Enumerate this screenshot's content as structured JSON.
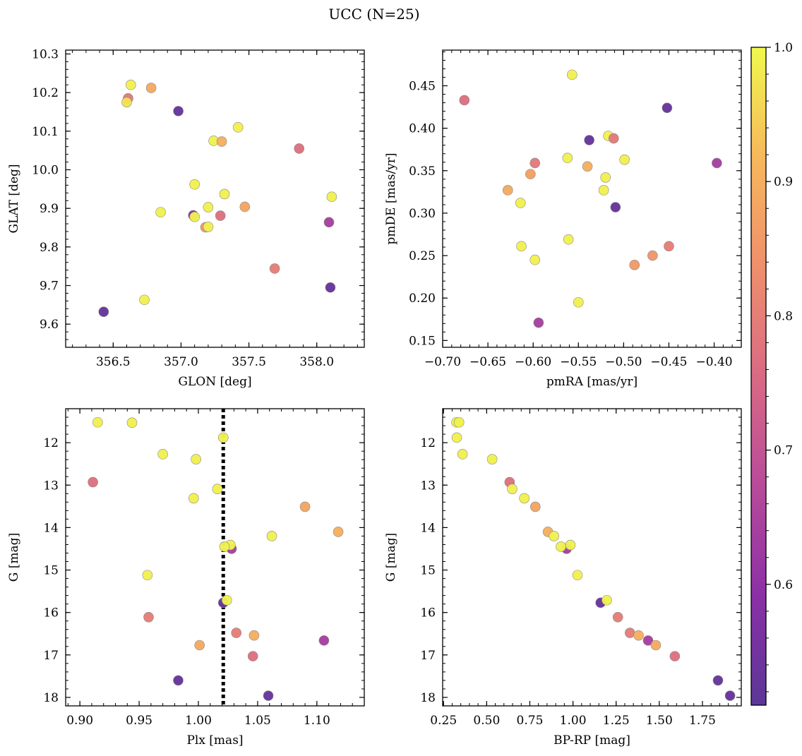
{
  "figure": {
    "suptitle": "UCC (N=25)",
    "colorbar": {
      "min": 0.51,
      "max": 1.0,
      "ticks": [
        0.6,
        0.7,
        0.8,
        0.9,
        1.0
      ],
      "tick_labels": [
        "0.6",
        "0.7",
        "0.8",
        "0.9",
        "1.0"
      ],
      "colormap": "plasma",
      "colormap_stops": [
        "#5b3797",
        "#8b30a6",
        "#b84b9a",
        "#d96a84",
        "#ef8f6c",
        "#f7b85b",
        "#f0f94e"
      ]
    }
  },
  "chart_data": [
    {
      "type": "scatter",
      "xlabel": "GLON [deg]",
      "ylabel": "GLAT [deg]",
      "xlim": [
        356.15,
        358.35
      ],
      "ylim": [
        9.54,
        10.31
      ],
      "xticks": [
        356.5,
        357.0,
        357.5,
        358.0
      ],
      "xtick_labels": [
        "356.5",
        "357.0",
        "357.5",
        "358.0"
      ],
      "yticks": [
        9.6,
        9.7,
        9.8,
        9.9,
        10.0,
        10.1,
        10.2,
        10.3
      ],
      "ytick_labels": [
        "9.6",
        "9.7",
        "9.8",
        "9.9",
        "10.0",
        "10.1",
        "10.2",
        "10.3"
      ],
      "points": [
        {
          "x": 356.43,
          "y": 9.632,
          "c": 0.53
        },
        {
          "x": 356.61,
          "y": 10.185,
          "c": 0.79
        },
        {
          "x": 356.63,
          "y": 10.22,
          "c": 0.99
        },
        {
          "x": 356.6,
          "y": 10.175,
          "c": 0.97
        },
        {
          "x": 356.78,
          "y": 10.212,
          "c": 0.89
        },
        {
          "x": 356.98,
          "y": 10.152,
          "c": 0.53
        },
        {
          "x": 356.85,
          "y": 9.89,
          "c": 0.99
        },
        {
          "x": 356.73,
          "y": 9.663,
          "c": 0.99
        },
        {
          "x": 357.09,
          "y": 9.882,
          "c": 0.59
        },
        {
          "x": 357.1,
          "y": 9.962,
          "c": 0.99
        },
        {
          "x": 357.1,
          "y": 9.878,
          "c": 0.99
        },
        {
          "x": 357.18,
          "y": 9.851,
          "c": 0.85
        },
        {
          "x": 357.2,
          "y": 9.852,
          "c": 0.99
        },
        {
          "x": 357.2,
          "y": 9.903,
          "c": 0.99
        },
        {
          "x": 357.24,
          "y": 10.075,
          "c": 0.99
        },
        {
          "x": 357.3,
          "y": 10.073,
          "c": 0.9
        },
        {
          "x": 357.29,
          "y": 9.881,
          "c": 0.77
        },
        {
          "x": 357.32,
          "y": 9.937,
          "c": 0.99
        },
        {
          "x": 357.42,
          "y": 10.11,
          "c": 0.99
        },
        {
          "x": 357.47,
          "y": 9.904,
          "c": 0.88
        },
        {
          "x": 357.69,
          "y": 9.744,
          "c": 0.8
        },
        {
          "x": 357.87,
          "y": 10.055,
          "c": 0.77
        },
        {
          "x": 358.09,
          "y": 9.864,
          "c": 0.64
        },
        {
          "x": 358.1,
          "y": 9.695,
          "c": 0.53
        },
        {
          "x": 358.11,
          "y": 9.93,
          "c": 0.99
        }
      ]
    },
    {
      "type": "scatter",
      "xlabel": "pmRA [mas/yr]",
      "ylabel": "pmDE [mas/yr]",
      "xlim": [
        -0.7,
        -0.37
      ],
      "ylim": [
        0.142,
        0.492
      ],
      "xticks": [
        -0.7,
        -0.65,
        -0.6,
        -0.55,
        -0.5,
        -0.45,
        -0.4
      ],
      "xtick_labels": [
        "−0.70",
        "−0.65",
        "−0.60",
        "−0.55",
        "−0.50",
        "−0.45",
        "−0.40"
      ],
      "yticks": [
        0.15,
        0.2,
        0.25,
        0.3,
        0.35,
        0.4,
        0.45
      ],
      "ytick_labels": [
        "0.15",
        "0.20",
        "0.25",
        "0.30",
        "0.35",
        "0.40",
        "0.45"
      ],
      "points": [
        {
          "x": -0.676,
          "y": 0.433,
          "c": 0.77
        },
        {
          "x": -0.557,
          "y": 0.463,
          "c": 0.99
        },
        {
          "x": -0.452,
          "y": 0.424,
          "c": 0.53
        },
        {
          "x": -0.538,
          "y": 0.386,
          "c": 0.53
        },
        {
          "x": -0.517,
          "y": 0.391,
          "c": 0.99
        },
        {
          "x": -0.511,
          "y": 0.388,
          "c": 0.79
        },
        {
          "x": -0.397,
          "y": 0.359,
          "c": 0.64
        },
        {
          "x": -0.598,
          "y": 0.359,
          "c": 0.79
        },
        {
          "x": -0.562,
          "y": 0.365,
          "c": 0.99
        },
        {
          "x": -0.54,
          "y": 0.355,
          "c": 0.9
        },
        {
          "x": -0.603,
          "y": 0.346,
          "c": 0.87
        },
        {
          "x": -0.52,
          "y": 0.342,
          "c": 0.99
        },
        {
          "x": -0.499,
          "y": 0.363,
          "c": 0.99
        },
        {
          "x": -0.628,
          "y": 0.327,
          "c": 0.89
        },
        {
          "x": -0.522,
          "y": 0.327,
          "c": 0.99
        },
        {
          "x": -0.614,
          "y": 0.312,
          "c": 0.99
        },
        {
          "x": -0.509,
          "y": 0.307,
          "c": 0.53
        },
        {
          "x": -0.613,
          "y": 0.261,
          "c": 0.99
        },
        {
          "x": -0.561,
          "y": 0.269,
          "c": 0.99
        },
        {
          "x": -0.598,
          "y": 0.245,
          "c": 0.99
        },
        {
          "x": -0.45,
          "y": 0.261,
          "c": 0.8
        },
        {
          "x": -0.468,
          "y": 0.25,
          "c": 0.85
        },
        {
          "x": -0.488,
          "y": 0.239,
          "c": 0.86
        },
        {
          "x": -0.55,
          "y": 0.195,
          "c": 0.99
        },
        {
          "x": -0.594,
          "y": 0.171,
          "c": 0.64
        }
      ]
    },
    {
      "type": "scatter",
      "xlabel": "Plx [mas]",
      "ylabel": "G [mag]",
      "xlim": [
        0.888,
        1.14
      ],
      "ylim": [
        18.2,
        11.2
      ],
      "y_inverted": true,
      "xticks": [
        0.9,
        0.95,
        1.0,
        1.05,
        1.1
      ],
      "xtick_labels": [
        "0.90",
        "0.95",
        "1.00",
        "1.05",
        "1.10"
      ],
      "yticks": [
        12,
        13,
        14,
        15,
        16,
        17,
        18
      ],
      "ytick_labels": [
        "12",
        "13",
        "14",
        "15",
        "16",
        "17",
        "18"
      ],
      "vline": {
        "x": 1.021,
        "style": "dotted"
      },
      "points": [
        {
          "x": 0.915,
          "y": 11.52,
          "c": 0.99
        },
        {
          "x": 0.944,
          "y": 11.53,
          "c": 0.99
        },
        {
          "x": 1.021,
          "y": 11.88,
          "c": 0.99
        },
        {
          "x": 0.97,
          "y": 12.27,
          "c": 0.99
        },
        {
          "x": 0.998,
          "y": 12.39,
          "c": 0.99
        },
        {
          "x": 0.911,
          "y": 12.93,
          "c": 0.77
        },
        {
          "x": 1.016,
          "y": 13.09,
          "c": 0.99
        },
        {
          "x": 0.996,
          "y": 13.31,
          "c": 0.99
        },
        {
          "x": 1.09,
          "y": 13.51,
          "c": 0.88
        },
        {
          "x": 1.118,
          "y": 14.1,
          "c": 0.9
        },
        {
          "x": 1.062,
          "y": 14.2,
          "c": 0.99
        },
        {
          "x": 1.028,
          "y": 14.5,
          "c": 0.64
        },
        {
          "x": 1.027,
          "y": 14.41,
          "c": 0.99
        },
        {
          "x": 1.022,
          "y": 14.45,
          "c": 0.99
        },
        {
          "x": 0.957,
          "y": 15.12,
          "c": 0.99
        },
        {
          "x": 1.021,
          "y": 15.77,
          "c": 0.53
        },
        {
          "x": 1.024,
          "y": 15.71,
          "c": 0.99
        },
        {
          "x": 0.958,
          "y": 16.11,
          "c": 0.8
        },
        {
          "x": 1.032,
          "y": 16.48,
          "c": 0.8
        },
        {
          "x": 1.047,
          "y": 16.54,
          "c": 0.9
        },
        {
          "x": 1.106,
          "y": 16.66,
          "c": 0.64
        },
        {
          "x": 1.001,
          "y": 16.77,
          "c": 0.89
        },
        {
          "x": 1.046,
          "y": 17.03,
          "c": 0.77
        },
        {
          "x": 0.983,
          "y": 17.6,
          "c": 0.53
        },
        {
          "x": 1.059,
          "y": 17.96,
          "c": 0.53
        }
      ]
    },
    {
      "type": "scatter",
      "xlabel": "BP-RP [mag]",
      "ylabel": "G [mag]",
      "xlim": [
        0.245,
        1.975
      ],
      "ylim": [
        18.2,
        11.2
      ],
      "y_inverted": true,
      "xticks": [
        0.25,
        0.5,
        0.75,
        1.0,
        1.25,
        1.5,
        1.75
      ],
      "xtick_labels": [
        "0.25",
        "0.50",
        "0.75",
        "1.00",
        "1.25",
        "1.50",
        "1.75"
      ],
      "yticks": [
        12,
        13,
        14,
        15,
        16,
        17,
        18
      ],
      "ytick_labels": [
        "12",
        "13",
        "14",
        "15",
        "16",
        "17",
        "18"
      ],
      "points": [
        {
          "x": 0.325,
          "y": 11.52,
          "c": 0.99
        },
        {
          "x": 0.34,
          "y": 11.52,
          "c": 0.99
        },
        {
          "x": 0.327,
          "y": 11.88,
          "c": 0.99
        },
        {
          "x": 0.36,
          "y": 12.27,
          "c": 0.99
        },
        {
          "x": 0.532,
          "y": 12.39,
          "c": 0.99
        },
        {
          "x": 0.633,
          "y": 12.93,
          "c": 0.77
        },
        {
          "x": 0.648,
          "y": 13.09,
          "c": 0.99
        },
        {
          "x": 0.718,
          "y": 13.31,
          "c": 0.99
        },
        {
          "x": 0.782,
          "y": 13.51,
          "c": 0.88
        },
        {
          "x": 0.855,
          "y": 14.1,
          "c": 0.9
        },
        {
          "x": 0.89,
          "y": 14.2,
          "c": 0.99
        },
        {
          "x": 0.963,
          "y": 14.5,
          "c": 0.64
        },
        {
          "x": 0.985,
          "y": 14.41,
          "c": 0.99
        },
        {
          "x": 0.93,
          "y": 14.45,
          "c": 0.99
        },
        {
          "x": 1.026,
          "y": 15.12,
          "c": 0.99
        },
        {
          "x": 1.16,
          "y": 15.77,
          "c": 0.53
        },
        {
          "x": 1.196,
          "y": 15.71,
          "c": 0.99
        },
        {
          "x": 1.26,
          "y": 16.11,
          "c": 0.8
        },
        {
          "x": 1.33,
          "y": 16.48,
          "c": 0.8
        },
        {
          "x": 1.38,
          "y": 16.54,
          "c": 0.9
        },
        {
          "x": 1.435,
          "y": 16.66,
          "c": 0.64
        },
        {
          "x": 1.48,
          "y": 16.77,
          "c": 0.89
        },
        {
          "x": 1.59,
          "y": 17.03,
          "c": 0.77
        },
        {
          "x": 1.84,
          "y": 17.6,
          "c": 0.53
        },
        {
          "x": 1.91,
          "y": 17.96,
          "c": 0.53
        }
      ]
    }
  ]
}
